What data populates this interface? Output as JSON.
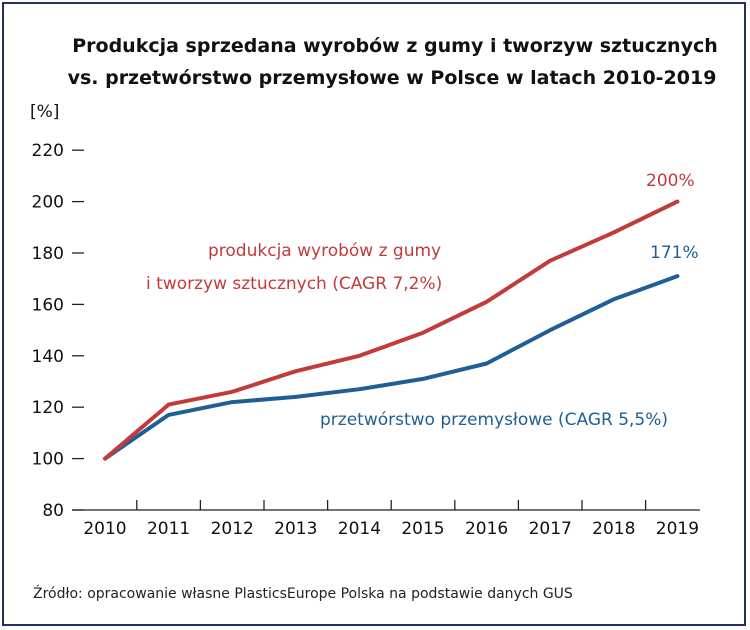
{
  "chart_data": {
    "type": "line",
    "title_lines": [
      "Produkcja sprzedana wyrobów z gumy i tworzyw sztucznych",
      "vs. przetwórstwo przemysłowe w Polsce w latach 2010-2019"
    ],
    "ylabel": "[%]",
    "xlabel": "",
    "ylim": [
      80,
      220
    ],
    "yticks": [
      80,
      100,
      120,
      140,
      160,
      180,
      200,
      220
    ],
    "categories": [
      "2010",
      "2011",
      "2012",
      "2013",
      "2014",
      "2015",
      "2016",
      "2017",
      "2018",
      "2019"
    ],
    "grid": false,
    "series": [
      {
        "name_lines": [
          "produkcja wyrobów z gumy",
          "i tworzyw sztucznych (CAGR 7,2%)"
        ],
        "values": [
          100,
          121,
          126,
          134,
          140,
          149,
          161,
          177,
          188,
          200
        ],
        "end_label": "200%",
        "color": "#c23b3b"
      },
      {
        "name_lines": [
          "przetwórstwo przemysłowe (CAGR 5,5%)"
        ],
        "values": [
          100,
          117,
          122,
          124,
          127,
          131,
          137,
          150,
          162,
          171
        ],
        "end_label": "171%",
        "color": "#1f5f96"
      }
    ]
  },
  "source": "Źródło: opracowanie własne PlasticsEurope Polska na podstawie danych GUS"
}
